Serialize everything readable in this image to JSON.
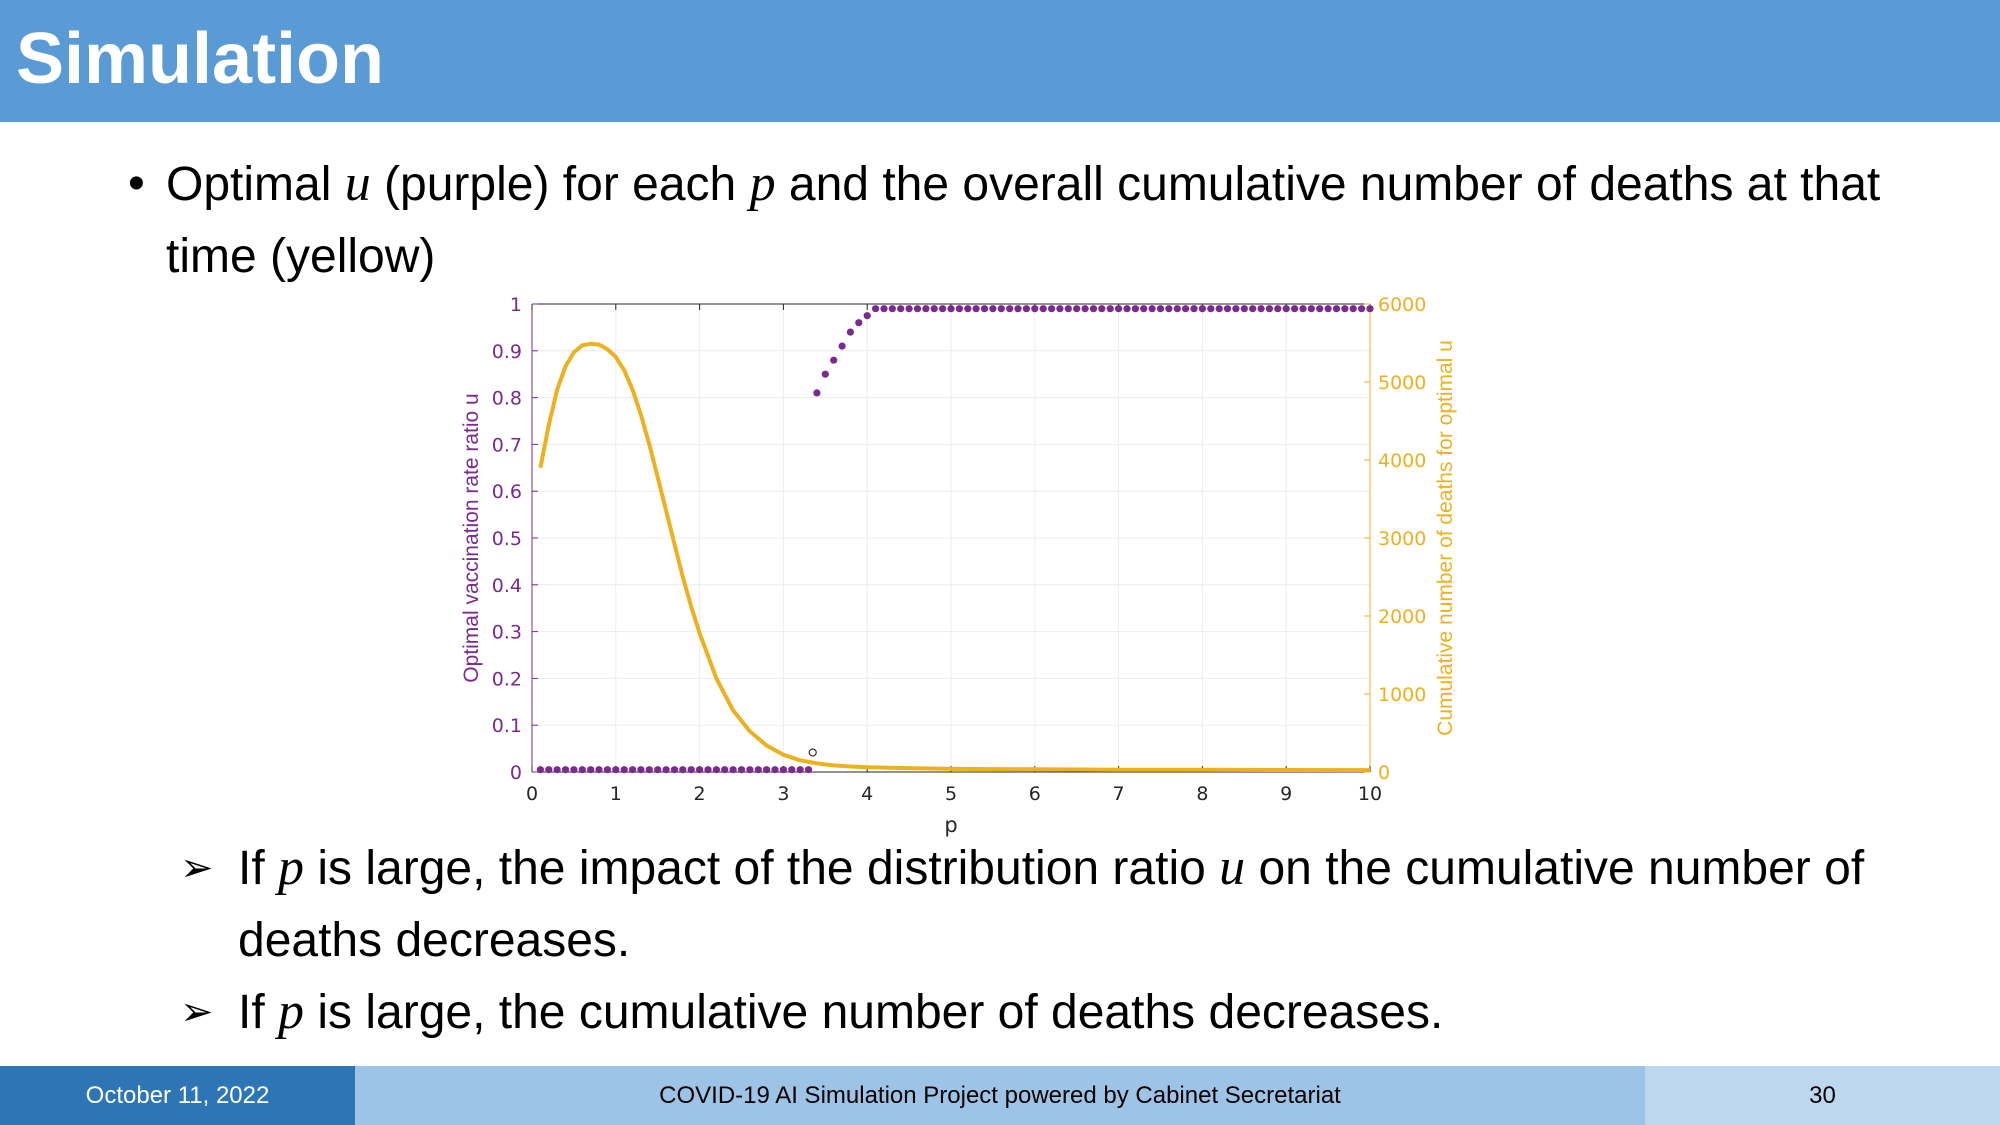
{
  "slide": {
    "title": "Simulation",
    "bullet": {
      "marker": "•",
      "t1": "Optimal ",
      "m1": "u",
      "t2": " (purple) for each ",
      "m2": "p",
      "t3": " and the overall cumulative number of deaths at that time (yellow)"
    },
    "sub_bullets": [
      {
        "marker": "➢",
        "t1": "If ",
        "m1": "p",
        "t2": " is large, the impact of the distribution ratio ",
        "m2": "u",
        "t3": " on the cumulative number of deaths decreases."
      },
      {
        "marker": "➢",
        "t1": "If ",
        "m1": "p",
        "t2": " is large, the cumulative number of deaths decreases."
      }
    ]
  },
  "footer": {
    "date": "October 11, 2022",
    "project": "COVID-19 AI Simulation Project powered by Cabinet Secretariat",
    "page": "30"
  },
  "colors": {
    "title_bar": "#5b9bd5",
    "purple_series": "#7b2a8e",
    "yellow_series": "#edb120",
    "footer_left": "#2e75b6",
    "footer_mid": "#9dc3e6",
    "footer_right": "#bdd7ee"
  },
  "chart_data": {
    "type": "scatter",
    "title": "",
    "xlabel": "p",
    "ylabel_left": "Optimal vaccination rate ratio u",
    "ylabel_right": "Cumulative number of deaths for optimal u",
    "xlim": [
      0,
      10
    ],
    "ylim_left": [
      0,
      1
    ],
    "ylim_right": [
      0,
      6000
    ],
    "xticks": [
      "0",
      "1",
      "2",
      "3",
      "4",
      "5",
      "6",
      "7",
      "8",
      "9",
      "10"
    ],
    "yticks_left": [
      "0",
      "0.1",
      "0.2",
      "0.3",
      "0.4",
      "0.5",
      "0.6",
      "0.7",
      "0.8",
      "0.9",
      "1"
    ],
    "yticks_right": [
      "0",
      "1000",
      "2000",
      "3000",
      "4000",
      "5000",
      "6000"
    ],
    "grid": true,
    "series": [
      {
        "axis": "left",
        "style": "markers",
        "color": "#7b2a8e",
        "x": [
          0.1,
          0.2,
          0.3,
          0.4,
          0.5,
          0.6,
          0.7,
          0.8,
          0.9,
          1.0,
          1.1,
          1.2,
          1.3,
          1.4,
          1.5,
          1.6,
          1.7,
          1.8,
          1.9,
          2.0,
          2.1,
          2.2,
          2.3,
          2.4,
          2.5,
          2.6,
          2.7,
          2.8,
          2.9,
          3.0,
          3.1,
          3.2,
          3.3,
          3.4,
          3.5,
          3.6,
          3.7,
          3.8,
          3.9,
          4.0,
          4.1,
          4.2,
          4.3,
          4.4,
          4.5,
          4.6,
          4.7,
          4.8,
          4.9,
          5.0,
          5.1,
          5.2,
          5.3,
          5.4,
          5.5,
          5.6,
          5.7,
          5.8,
          5.9,
          6.0,
          6.1,
          6.2,
          6.3,
          6.4,
          6.5,
          6.6,
          6.7,
          6.8,
          6.9,
          7.0,
          7.1,
          7.2,
          7.3,
          7.4,
          7.5,
          7.6,
          7.7,
          7.8,
          7.9,
          8.0,
          8.1,
          8.2,
          8.3,
          8.4,
          8.5,
          8.6,
          8.7,
          8.8,
          8.9,
          9.0,
          9.1,
          9.2,
          9.3,
          9.4,
          9.5,
          9.6,
          9.7,
          9.8,
          9.9,
          10.0
        ],
        "y": [
          0.005,
          0.005,
          0.005,
          0.005,
          0.005,
          0.005,
          0.005,
          0.005,
          0.005,
          0.005,
          0.005,
          0.005,
          0.005,
          0.005,
          0.005,
          0.005,
          0.005,
          0.005,
          0.005,
          0.005,
          0.005,
          0.005,
          0.005,
          0.005,
          0.005,
          0.005,
          0.005,
          0.005,
          0.005,
          0.005,
          0.005,
          0.005,
          0.005,
          0.81,
          0.85,
          0.88,
          0.91,
          0.94,
          0.96,
          0.975,
          0.99,
          0.99,
          0.99,
          0.99,
          0.99,
          0.99,
          0.99,
          0.99,
          0.99,
          0.99,
          0.99,
          0.99,
          0.99,
          0.99,
          0.99,
          0.99,
          0.99,
          0.99,
          0.99,
          0.99,
          0.99,
          0.99,
          0.99,
          0.99,
          0.99,
          0.99,
          0.99,
          0.99,
          0.99,
          0.99,
          0.99,
          0.99,
          0.99,
          0.99,
          0.99,
          0.99,
          0.99,
          0.99,
          0.99,
          0.99,
          0.99,
          0.99,
          0.99,
          0.99,
          0.99,
          0.99,
          0.99,
          0.99,
          0.99,
          0.99,
          0.99,
          0.99,
          0.99,
          0.99,
          0.99,
          0.99,
          0.99,
          0.99,
          0.99,
          0.99
        ]
      },
      {
        "axis": "right",
        "style": "line",
        "color": "#edb120",
        "x": [
          0.1,
          0.2,
          0.3,
          0.4,
          0.5,
          0.6,
          0.7,
          0.8,
          0.9,
          1.0,
          1.1,
          1.2,
          1.3,
          1.4,
          1.5,
          1.6,
          1.7,
          1.8,
          1.9,
          2.0,
          2.2,
          2.4,
          2.6,
          2.8,
          3.0,
          3.2,
          3.4,
          3.6,
          3.8,
          4.0,
          4.5,
          5.0,
          6.0,
          7.0,
          8.0,
          9.0,
          10.0
        ],
        "y": [
          3900,
          4450,
          4900,
          5200,
          5380,
          5470,
          5490,
          5480,
          5420,
          5320,
          5150,
          4900,
          4580,
          4200,
          3780,
          3350,
          2920,
          2500,
          2120,
          1780,
          1200,
          790,
          520,
          340,
          220,
          150,
          110,
          85,
          70,
          60,
          50,
          40,
          35,
          30,
          28,
          26,
          25
        ]
      }
    ],
    "annotations": [
      {
        "x": 3.35,
        "y_right": 250,
        "style": "small black circle"
      }
    ]
  }
}
